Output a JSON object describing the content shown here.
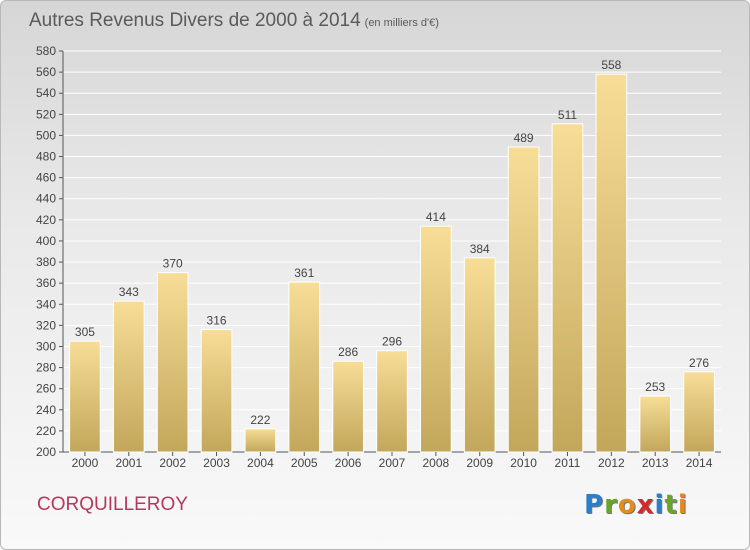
{
  "title": "Autres Revenus Divers de 2000 à 2014",
  "subtitle": "(en milliers d'€)",
  "commune": "CORQUILLEROY",
  "logo": {
    "letters": [
      "P",
      "r",
      "o",
      "x",
      "i",
      "t",
      "i"
    ],
    "colors": [
      "#2a7fc9",
      "#6aa52b",
      "#e58b1e",
      "#d22b2b",
      "#2a7fc9",
      "#6aa52b",
      "#e58b1e"
    ]
  },
  "colors": {
    "bar_top": "#f7dd96",
    "bar_bottom": "#c2a75b",
    "grid": "#ffffff",
    "axis": "#555555",
    "text": "#444444"
  },
  "chart_data": {
    "type": "bar",
    "categories": [
      "2000",
      "2001",
      "2002",
      "2003",
      "2004",
      "2005",
      "2006",
      "2007",
      "2008",
      "2009",
      "2010",
      "2011",
      "2012",
      "2013",
      "2014"
    ],
    "values": [
      305,
      343,
      370,
      316,
      222,
      361,
      286,
      296,
      414,
      384,
      489,
      511,
      558,
      253,
      276
    ],
    "ylim": [
      200,
      580
    ],
    "ytick_step": 20,
    "grid": true
  }
}
